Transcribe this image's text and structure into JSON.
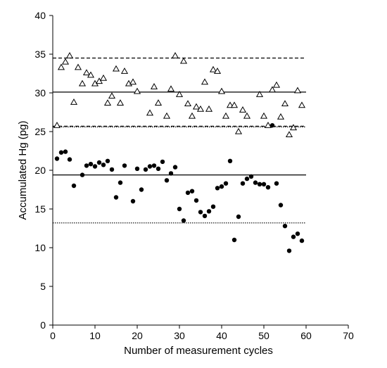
{
  "chart_data": {
    "type": "scatter",
    "xlabel": "Number of measurement cycles",
    "ylabel": "Accumulated Hg (pg)",
    "xlim": [
      0,
      70
    ],
    "ylim": [
      0,
      40
    ],
    "xticks": [
      "0",
      "10",
      "20",
      "30",
      "40",
      "50",
      "60",
      "70"
    ],
    "yticks": [
      "0",
      "5",
      "10",
      "15",
      "20",
      "25",
      "30",
      "35",
      "40"
    ],
    "grid": false,
    "series": [
      {
        "marker": "open-triangle",
        "color": "#000000",
        "points": [
          [
            1,
            25.8
          ],
          [
            2,
            33.3
          ],
          [
            3,
            34.0
          ],
          [
            4,
            34.8
          ],
          [
            5,
            28.8
          ],
          [
            6,
            33.3
          ],
          [
            7,
            31.2
          ],
          [
            8,
            32.6
          ],
          [
            9,
            32.3
          ],
          [
            10,
            31.2
          ],
          [
            11,
            31.5
          ],
          [
            12,
            31.9
          ],
          [
            13,
            28.7
          ],
          [
            14,
            29.6
          ],
          [
            15,
            33.1
          ],
          [
            16,
            28.7
          ],
          [
            17,
            32.8
          ],
          [
            18,
            31.2
          ],
          [
            19,
            31.4
          ],
          [
            20,
            30.2
          ],
          [
            23,
            27.4
          ],
          [
            24,
            30.8
          ],
          [
            25,
            28.7
          ],
          [
            27,
            27.0
          ],
          [
            28,
            30.5
          ],
          [
            29,
            34.8
          ],
          [
            30,
            29.8
          ],
          [
            31,
            34.1
          ],
          [
            32,
            28.6
          ],
          [
            33,
            27.0
          ],
          [
            34,
            28.2
          ],
          [
            35,
            27.9
          ],
          [
            36,
            31.4
          ],
          [
            37,
            27.9
          ],
          [
            38,
            33.0
          ],
          [
            39,
            32.8
          ],
          [
            40,
            30.2
          ],
          [
            41,
            27.0
          ],
          [
            42,
            28.4
          ],
          [
            43,
            28.4
          ],
          [
            44,
            25.0
          ],
          [
            45,
            27.8
          ],
          [
            46,
            27.0
          ],
          [
            49,
            29.8
          ],
          [
            50,
            27.0
          ],
          [
            51,
            25.8
          ],
          [
            52,
            30.4
          ],
          [
            53,
            31.0
          ],
          [
            54,
            26.9
          ],
          [
            55,
            28.6
          ],
          [
            56,
            24.6
          ],
          [
            57,
            25.5
          ],
          [
            58,
            30.3
          ],
          [
            59,
            28.4
          ]
        ]
      },
      {
        "marker": "filled-circle",
        "color": "#000000",
        "points": [
          [
            1,
            21.5
          ],
          [
            2,
            22.3
          ],
          [
            3,
            22.4
          ],
          [
            4,
            21.4
          ],
          [
            5,
            18.0
          ],
          [
            7,
            19.4
          ],
          [
            8,
            20.6
          ],
          [
            9,
            20.8
          ],
          [
            10,
            20.5
          ],
          [
            11,
            21.0
          ],
          [
            12,
            20.7
          ],
          [
            13,
            21.2
          ],
          [
            14,
            20.1
          ],
          [
            15,
            16.5
          ],
          [
            16,
            18.4
          ],
          [
            17,
            20.6
          ],
          [
            19,
            16.0
          ],
          [
            20,
            20.2
          ],
          [
            21,
            17.5
          ],
          [
            22,
            20.1
          ],
          [
            23,
            20.5
          ],
          [
            24,
            20.6
          ],
          [
            25,
            20.2
          ],
          [
            26,
            21.1
          ],
          [
            27,
            18.7
          ],
          [
            28,
            19.6
          ],
          [
            29,
            20.4
          ],
          [
            30,
            15.0
          ],
          [
            31,
            13.5
          ],
          [
            32,
            17.1
          ],
          [
            33,
            17.3
          ],
          [
            34,
            16.1
          ],
          [
            35,
            14.6
          ],
          [
            36,
            14.1
          ],
          [
            37,
            14.7
          ],
          [
            38,
            15.3
          ],
          [
            39,
            17.7
          ],
          [
            40,
            17.9
          ],
          [
            41,
            18.3
          ],
          [
            42,
            21.2
          ],
          [
            43,
            11.0
          ],
          [
            44,
            14.0
          ],
          [
            45,
            18.3
          ],
          [
            46,
            18.9
          ],
          [
            47,
            19.2
          ],
          [
            48,
            18.4
          ],
          [
            49,
            18.2
          ],
          [
            50,
            18.2
          ],
          [
            51,
            17.8
          ],
          [
            52,
            25.8
          ],
          [
            53,
            18.3
          ],
          [
            54,
            15.5
          ],
          [
            55,
            12.8
          ],
          [
            56,
            9.6
          ],
          [
            57,
            11.4
          ],
          [
            58,
            11.8
          ],
          [
            59,
            10.9
          ]
        ]
      }
    ],
    "reference_lines": [
      {
        "y": 34.5,
        "style": "dashed"
      },
      {
        "y": 30.1,
        "style": "solid"
      },
      {
        "y": 25.7,
        "style": "dashed"
      },
      {
        "y": 25.6,
        "style": "dotted"
      },
      {
        "y": 19.4,
        "style": "solid"
      },
      {
        "y": 13.2,
        "style": "dotted"
      }
    ]
  }
}
